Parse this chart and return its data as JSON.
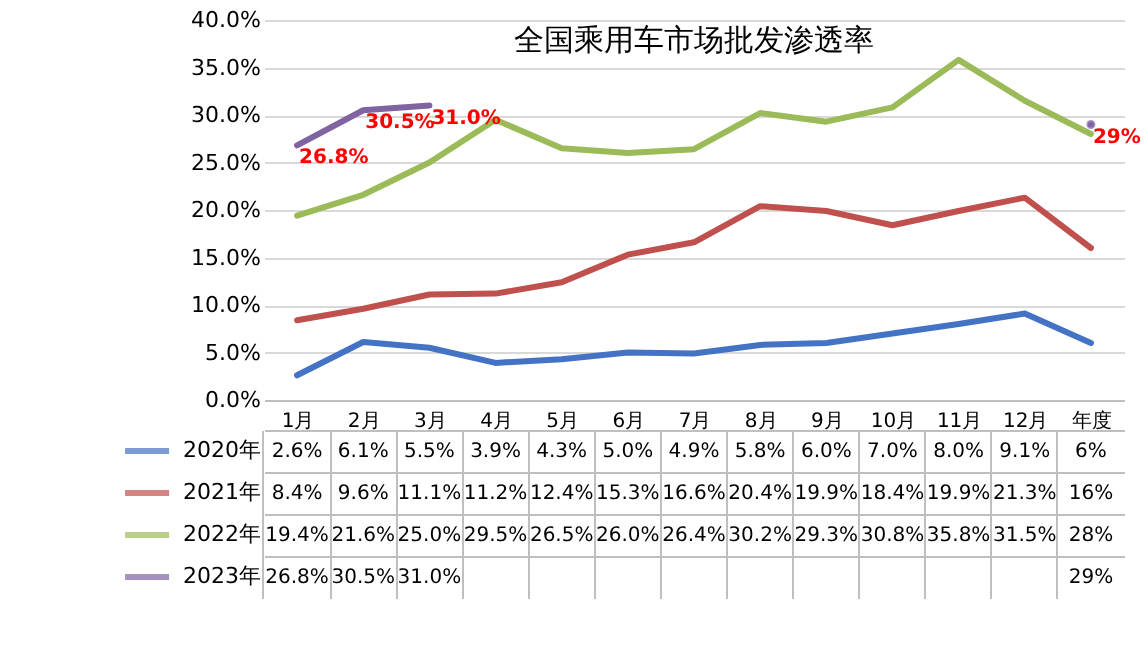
{
  "chart_data": {
    "type": "line",
    "title": "全国乘用车市场批发渗透率",
    "categories": [
      "1月",
      "2月",
      "3月",
      "4月",
      "5月",
      "6月",
      "7月",
      "8月",
      "9月",
      "10月",
      "11月",
      "12月",
      "年度"
    ],
    "series": [
      {
        "name": "2020年",
        "color": "#4472c4",
        "values": [
          2.6,
          6.1,
          5.5,
          3.9,
          4.3,
          5.0,
          4.9,
          5.8,
          6.0,
          7.0,
          8.0,
          9.1,
          6
        ],
        "value_labels": [
          "2.6%",
          "6.1%",
          "5.5%",
          "3.9%",
          "4.3%",
          "5.0%",
          "4.9%",
          "5.8%",
          "6.0%",
          "7.0%",
          "8.0%",
          "9.1%",
          "6%"
        ]
      },
      {
        "name": "2021年",
        "color": "#c0504d",
        "values": [
          8.4,
          9.6,
          11.1,
          11.2,
          12.4,
          15.3,
          16.6,
          20.4,
          19.9,
          18.4,
          19.9,
          21.3,
          16
        ],
        "value_labels": [
          "8.4%",
          "9.6%",
          "11.1%",
          "11.2%",
          "12.4%",
          "15.3%",
          "16.6%",
          "20.4%",
          "19.9%",
          "18.4%",
          "19.9%",
          "21.3%",
          "16%"
        ]
      },
      {
        "name": "2022年",
        "color": "#9bbb59",
        "values": [
          19.4,
          21.6,
          25.0,
          29.5,
          26.5,
          26.0,
          26.4,
          30.2,
          29.3,
          30.8,
          35.8,
          31.5,
          28
        ],
        "value_labels": [
          "19.4%",
          "21.6%",
          "25.0%",
          "29.5%",
          "26.5%",
          "26.0%",
          "26.4%",
          "30.2%",
          "29.3%",
          "30.8%",
          "35.8%",
          "31.5%",
          "28%"
        ]
      },
      {
        "name": "2023年",
        "color": "#8064a2",
        "values": [
          26.8,
          30.5,
          31.0,
          null,
          null,
          null,
          null,
          null,
          null,
          null,
          null,
          null,
          29
        ],
        "value_labels": [
          "26.8%",
          "30.5%",
          "31.0%",
          null,
          null,
          null,
          null,
          null,
          null,
          null,
          null,
          null,
          "29%"
        ]
      }
    ],
    "annotations": [
      {
        "text": "26.8%",
        "x": "1月",
        "y": 26.8
      },
      {
        "text": "30.5%",
        "x": "2月",
        "y": 30.5
      },
      {
        "text": "31.0%",
        "x": "3月",
        "y": 31.0
      },
      {
        "text": "29%",
        "x": "年度",
        "y": 29
      }
    ],
    "ylim": [
      0,
      40
    ],
    "yticks": [
      {
        "value": 0,
        "label": "0.0%"
      },
      {
        "value": 5,
        "label": "5.0%"
      },
      {
        "value": 10,
        "label": "10.0%"
      },
      {
        "value": 15,
        "label": "15.0%"
      },
      {
        "value": 20,
        "label": "20.0%"
      },
      {
        "value": 25,
        "label": "25.0%"
      },
      {
        "value": 30,
        "label": "30.0%"
      },
      {
        "value": 35,
        "label": "35.0%"
      },
      {
        "value": 40,
        "label": "40.0%"
      }
    ],
    "grid": "y",
    "legend": "bottom",
    "marker": "none",
    "line_style": "solid"
  }
}
